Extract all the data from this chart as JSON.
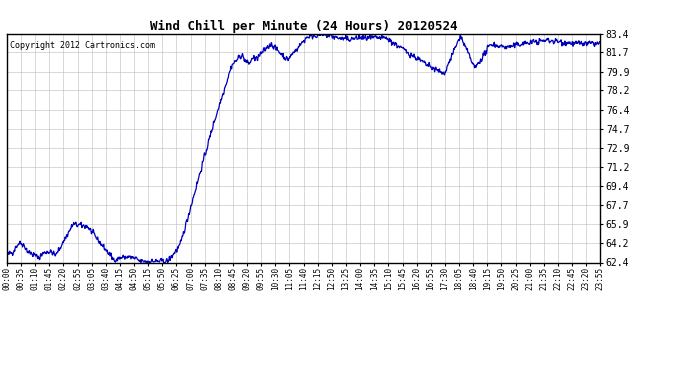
{
  "title": "Wind Chill per Minute (24 Hours) 20120524",
  "copyright": "Copyright 2012 Cartronics.com",
  "line_color": "#0000bb",
  "background_color": "#ffffff",
  "plot_bg_color": "#ffffff",
  "grid_color": "#bbbbbb",
  "border_color": "#000000",
  "yticks": [
    62.4,
    64.2,
    65.9,
    67.7,
    69.4,
    71.2,
    72.9,
    74.7,
    76.4,
    78.2,
    79.9,
    81.7,
    83.4
  ],
  "ymin": 62.4,
  "ymax": 83.4,
  "xtick_labels": [
    "00:00",
    "00:35",
    "01:10",
    "01:45",
    "02:20",
    "02:55",
    "03:05",
    "03:40",
    "04:15",
    "04:50",
    "05:15",
    "05:50",
    "06:25",
    "07:00",
    "07:35",
    "08:10",
    "08:45",
    "09:20",
    "09:55",
    "10:30",
    "11:05",
    "11:40",
    "12:15",
    "12:50",
    "13:25",
    "14:00",
    "14:35",
    "15:10",
    "15:45",
    "16:20",
    "16:55",
    "17:30",
    "18:05",
    "18:40",
    "19:15",
    "19:50",
    "20:25",
    "21:00",
    "21:35",
    "22:10",
    "22:45",
    "23:20",
    "23:55"
  ],
  "title_fontsize": 9,
  "ytick_fontsize": 7,
  "xtick_fontsize": 5.5,
  "copyright_fontsize": 6,
  "line_width": 0.9,
  "seed": 42
}
